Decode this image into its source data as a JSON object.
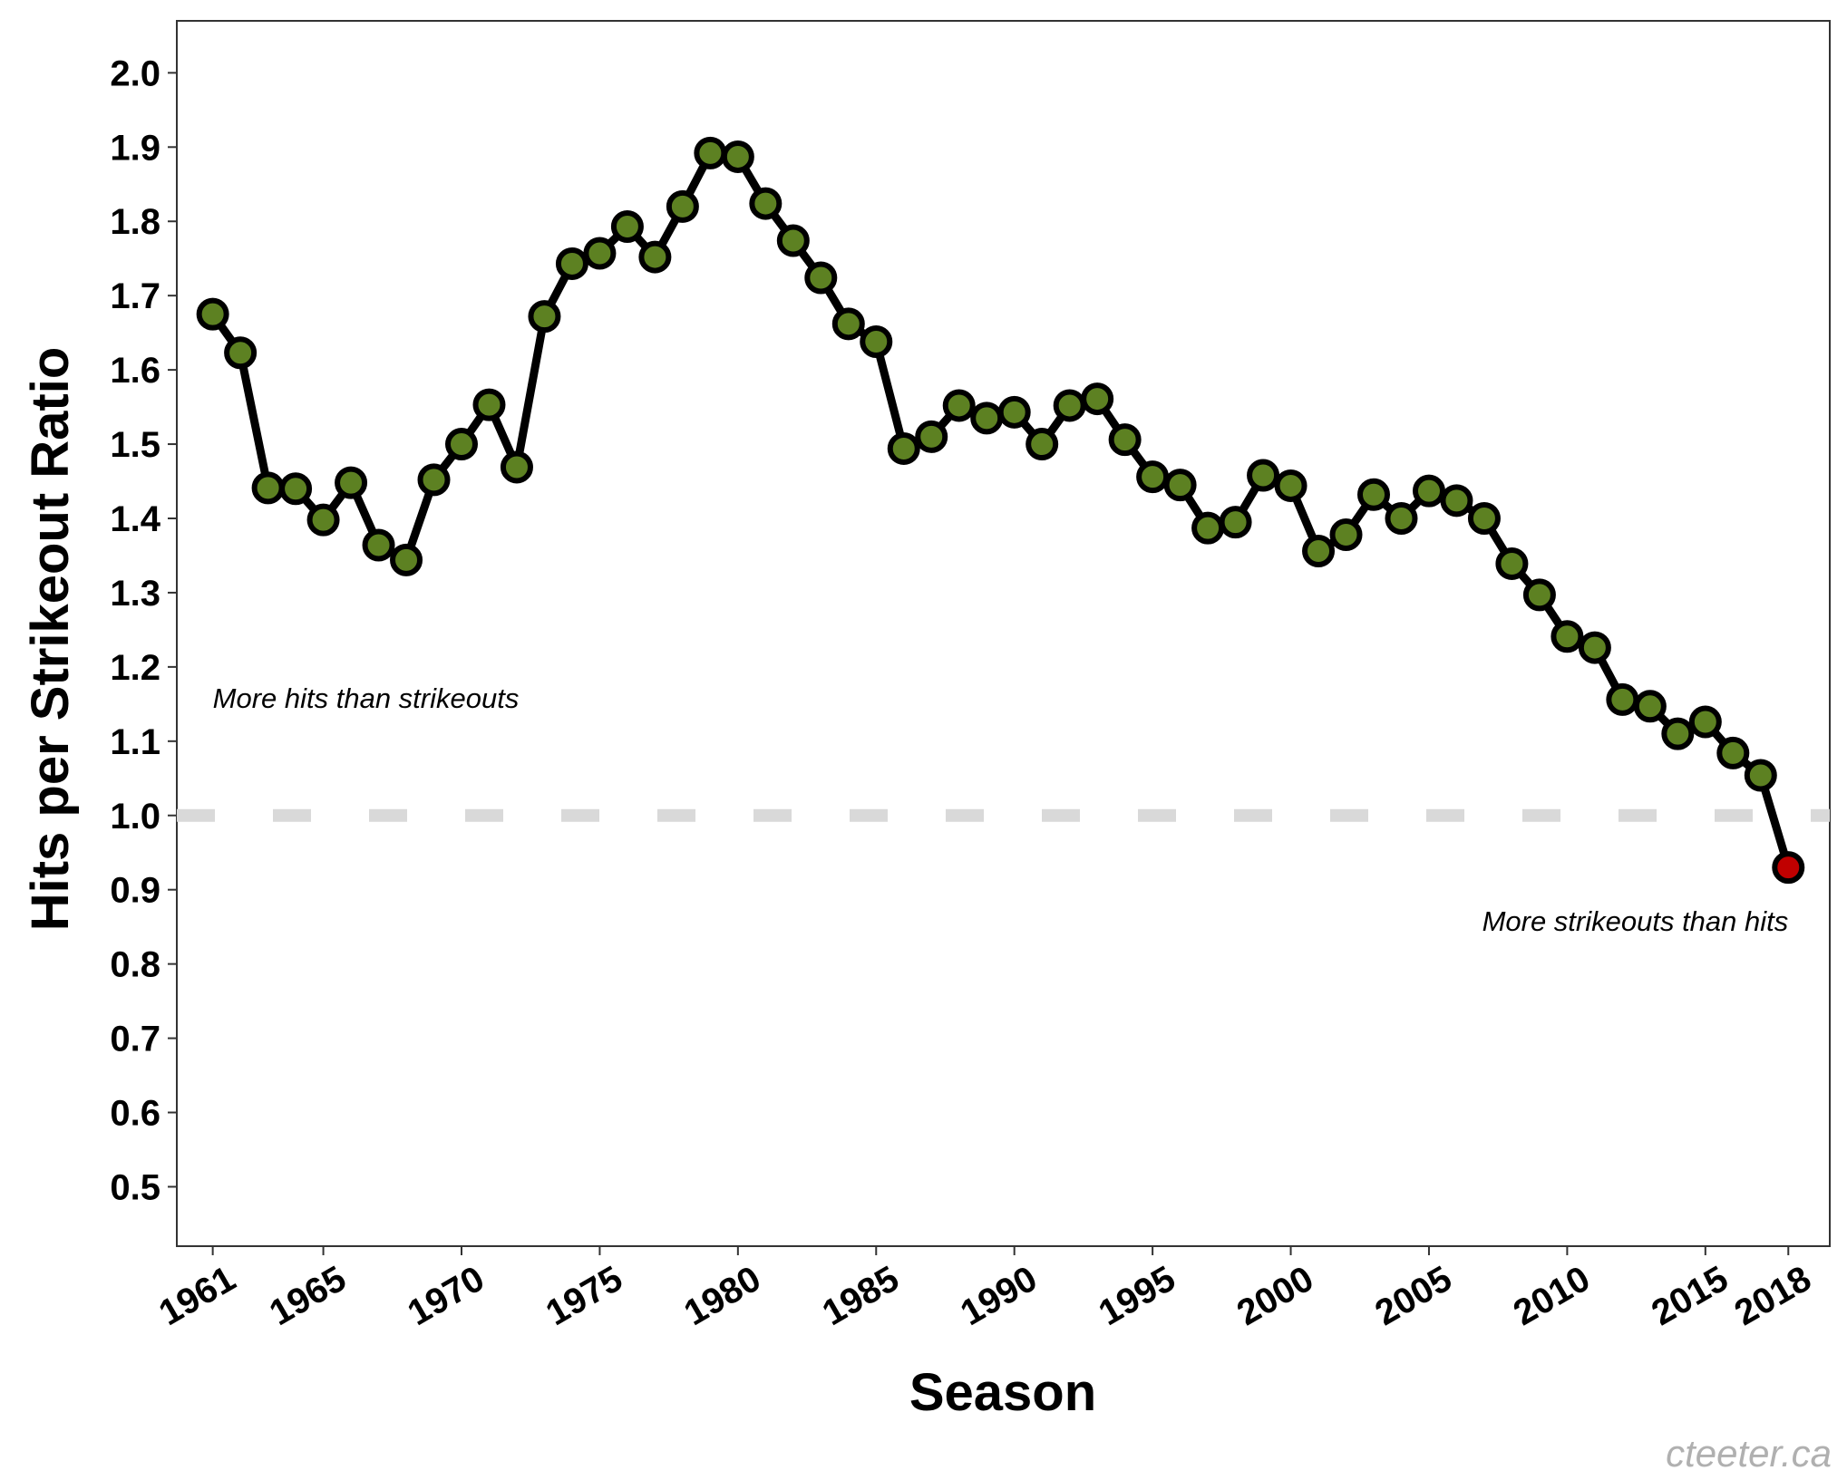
{
  "chart_data": {
    "type": "line",
    "xlabel": "Season",
    "ylabel": "Hits per Strikeout Ratio",
    "xlim": [
      1959.7,
      2019.5
    ],
    "ylim": [
      0.42,
      2.07
    ],
    "x_ticks": [
      1961,
      1965,
      1970,
      1975,
      1980,
      1985,
      1990,
      1995,
      2000,
      2005,
      2010,
      2015,
      2018
    ],
    "y_ticks": [
      "0.5",
      "0.6",
      "0.7",
      "0.8",
      "0.9",
      "1.0",
      "1.1",
      "1.2",
      "1.3",
      "1.4",
      "1.5",
      "1.6",
      "1.7",
      "1.8",
      "1.9",
      "2.0"
    ],
    "grid": false,
    "reference_line": {
      "y": 1.0,
      "style": "dashed",
      "color": "#d9d9d9"
    },
    "series": [
      {
        "x": [
          1961,
          1962,
          1963,
          1964,
          1965,
          1966,
          1967,
          1968,
          1969,
          1970,
          1971,
          1972,
          1973,
          1974,
          1975,
          1976,
          1977,
          1978,
          1979,
          1980,
          1981,
          1982,
          1983,
          1984,
          1985,
          1986,
          1987,
          1988,
          1989,
          1990,
          1991,
          1992,
          1993,
          1994,
          1995,
          1996,
          1997,
          1998,
          1999,
          2000,
          2001,
          2002,
          2003,
          2004,
          2005,
          2006,
          2007,
          2008,
          2009,
          2010,
          2011,
          2012,
          2013,
          2014,
          2015,
          2016,
          2017,
          2018
        ],
        "values": [
          1.675,
          1.623,
          1.441,
          1.44,
          1.398,
          1.448,
          1.364,
          1.344,
          1.452,
          1.5,
          1.553,
          1.469,
          1.672,
          1.743,
          1.757,
          1.793,
          1.752,
          1.82,
          1.892,
          1.887,
          1.824,
          1.774,
          1.724,
          1.662,
          1.638,
          1.494,
          1.51,
          1.552,
          1.535,
          1.543,
          1.5,
          1.552,
          1.561,
          1.506,
          1.456,
          1.445,
          1.387,
          1.395,
          1.458,
          1.444,
          1.356,
          1.378,
          1.432,
          1.4,
          1.437,
          1.424,
          1.4,
          1.339,
          1.297,
          1.241,
          1.226,
          1.156,
          1.147,
          1.11,
          1.126,
          1.084,
          1.054,
          0.93
        ],
        "line_color": "#000000",
        "point_fill": "#5d8122",
        "highlight_fill": "#c00000"
      }
    ],
    "annotations": [
      {
        "text": "More hits than strikeouts",
        "x": 1961,
        "y": 1.145,
        "anchor": "start"
      },
      {
        "text": "More strikeouts than hits",
        "x": 2018,
        "y": 0.845,
        "anchor": "end"
      }
    ]
  },
  "watermark": "cteeter.ca"
}
